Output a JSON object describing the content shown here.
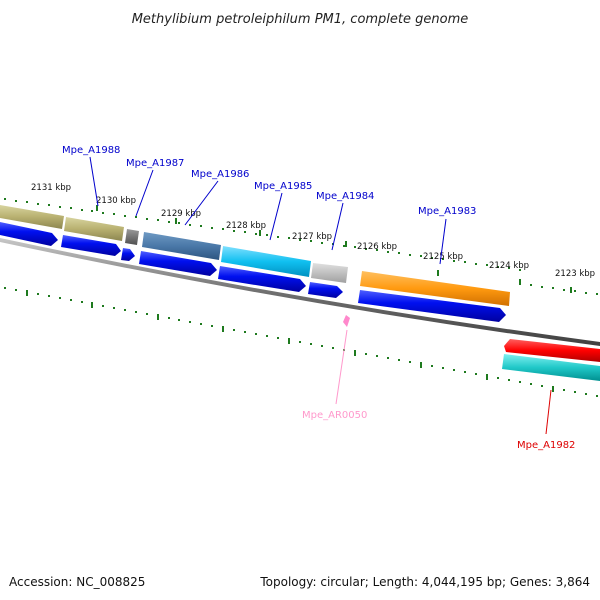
{
  "title": "Methylibium petroleiphilum PM1, complete genome",
  "footer": {
    "accession": "Accession: NC_008825",
    "summary": "Topology: circular; Length: 4,044,195 bp; Genes: 3,864"
  },
  "scale_ticks": [
    "2131 kbp",
    "2130 kbp",
    "2129 kbp",
    "2128 kbp",
    "2127 kbp",
    "2126 kbp",
    "2125 kbp",
    "2124 kbp",
    "2123 kbp"
  ],
  "gene_labels": [
    {
      "id": "Mpe_A1988",
      "text": "Mpe_A1988",
      "color": "#0000cc"
    },
    {
      "id": "Mpe_A1987",
      "text": "Mpe_A1987",
      "color": "#0000cc"
    },
    {
      "id": "Mpe_A1986",
      "text": "Mpe_A1986",
      "color": "#0000cc"
    },
    {
      "id": "Mpe_A1985",
      "text": "Mpe_A1985",
      "color": "#0000cc"
    },
    {
      "id": "Mpe_A1984",
      "text": "Mpe_A1984",
      "color": "#0000cc"
    },
    {
      "id": "Mpe_A1983",
      "text": "Mpe_A1983",
      "color": "#0000cc"
    },
    {
      "id": "Mpe_AR0050",
      "text": "Mpe_AR0050",
      "color": "#ff99cc"
    },
    {
      "id": "Mpe_A1982",
      "text": "Mpe_A1982",
      "color": "#dd0000"
    }
  ],
  "colors": {
    "backbone": "#808080",
    "tick": "#1e7a1e",
    "cds_arrow": "#0000ee",
    "rna": "#ff88cc"
  }
}
